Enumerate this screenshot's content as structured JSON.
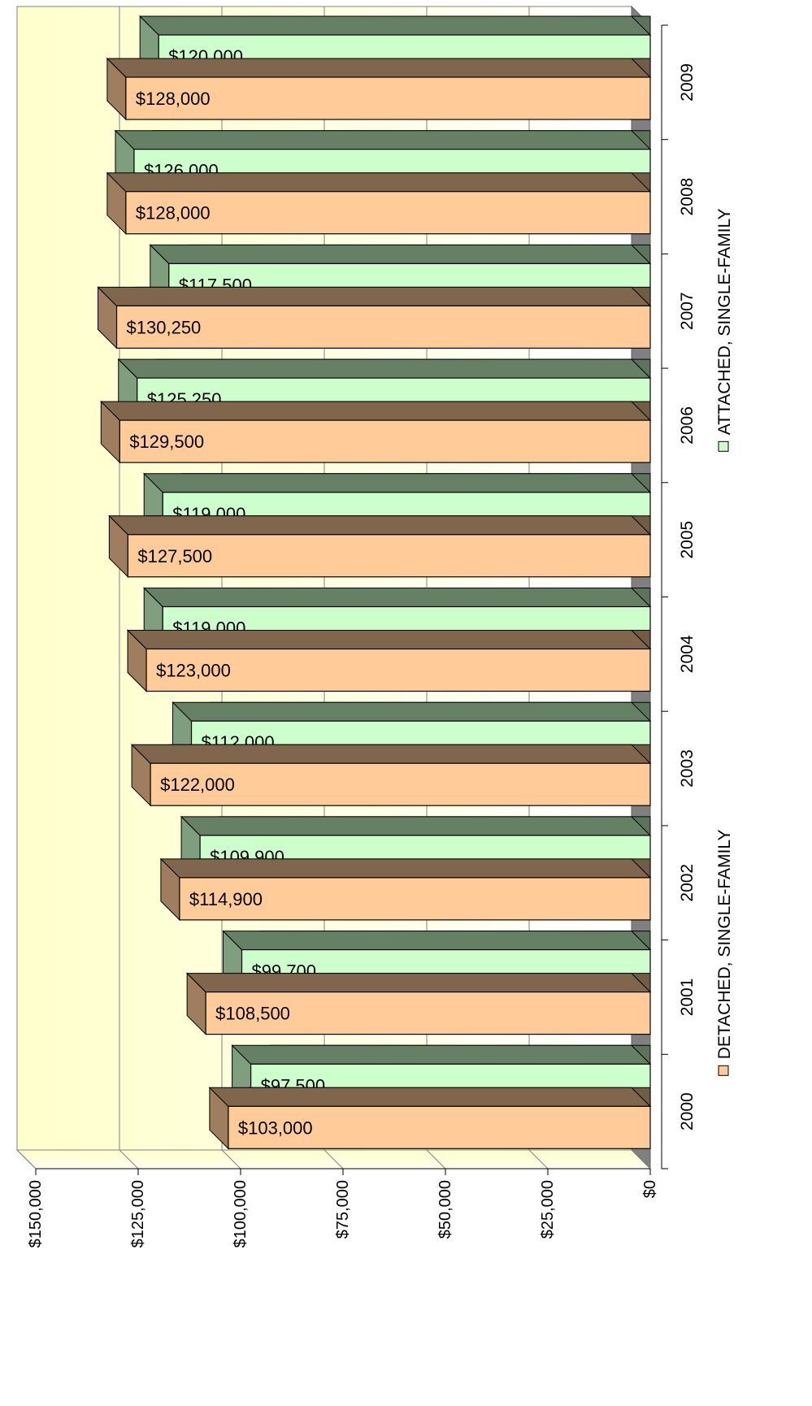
{
  "chart_data": {
    "type": "bar",
    "orientation": "3d bar chart, rendered rotated 90 degrees clockwise (years along right edge, values along bottom)",
    "title": "",
    "xlabel": "",
    "ylabel": "",
    "categories": [
      "2000",
      "2001",
      "2002",
      "2003",
      "2004",
      "2005",
      "2006",
      "2007",
      "2008",
      "2009"
    ],
    "series": [
      {
        "name": "DETACHED, SINGLE-FAMILY",
        "color": "#ffcc99",
        "values": [
          103000,
          108500,
          114900,
          122000,
          123000,
          127500,
          129500,
          130250,
          128000,
          128000
        ],
        "value_labels": [
          "$103,000",
          "$108,500",
          "$114,900",
          "$122,000",
          "$123,000",
          "$127,500",
          "$129,500",
          "$130,250",
          "$128,000",
          "$128,000"
        ]
      },
      {
        "name": "ATTACHED, SINGLE-FAMILY",
        "color": "#ccffcc",
        "values": [
          97500,
          99700,
          109900,
          112000,
          119000,
          119000,
          125250,
          117500,
          126000,
          120000
        ],
        "value_labels": [
          "$97,500",
          "$99,700",
          "$109,900",
          "$112,000",
          "$119,000",
          "$119,000",
          "$125,250",
          "$117,500",
          "$126,000",
          "$120,000"
        ]
      }
    ],
    "value_axis": {
      "ticks": [
        0,
        25000,
        50000,
        75000,
        100000,
        125000,
        150000
      ],
      "tick_labels": [
        "$0",
        "$25,000",
        "$50,000",
        "$75,000",
        "$100,000",
        "$125,000",
        "$150,000"
      ],
      "range": [
        0,
        150000
      ]
    },
    "grid": true,
    "legend_position": "right (rotated)"
  }
}
